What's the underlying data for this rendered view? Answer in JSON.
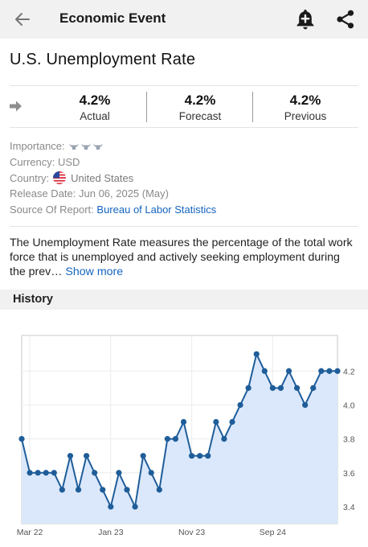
{
  "header": {
    "title": "Economic Event"
  },
  "event": {
    "title": "U.S. Unemployment Rate"
  },
  "stats": {
    "actual_value": "4.2%",
    "actual_label": "Actual",
    "forecast_value": "4.2%",
    "forecast_label": "Forecast",
    "previous_value": "4.2%",
    "previous_label": "Previous"
  },
  "info": {
    "importance_label": "Importance:",
    "importance_level": 3,
    "currency": "Currency: USD",
    "country_label": "Country:",
    "country_value": "United States",
    "release_date": "Release Date: Jun 06, 2025 (May)",
    "source_label": "Source Of Report:",
    "source_value": "Bureau of Labor Statistics"
  },
  "description": {
    "text": "The Unemployment Rate measures the percentage of the total work force that is unemployed and actively seeking employment during the prev…",
    "more_label": "Show more"
  },
  "history": {
    "heading": "History"
  },
  "colors": {
    "accent": "#1565c0",
    "line": "#1f5d99",
    "fill": "#dbe8fb"
  },
  "chart_data": {
    "type": "area",
    "x_tick_labels": [
      "Mar 22",
      "Jan 23",
      "Nov 23",
      "Sep 24"
    ],
    "x_tick_index": [
      1,
      11,
      21,
      31
    ],
    "y_ticks": [
      3.4,
      3.6,
      3.8,
      4.0,
      4.2
    ],
    "y_tick_labels": [
      "3.4",
      "3.6",
      "3.8",
      "4.0",
      "4.2"
    ],
    "ylim": [
      3.3,
      4.41
    ],
    "grid": true,
    "values": [
      3.8,
      3.6,
      3.6,
      3.6,
      3.6,
      3.5,
      3.7,
      3.5,
      3.7,
      3.6,
      3.5,
      3.4,
      3.6,
      3.5,
      3.4,
      3.7,
      3.6,
      3.5,
      3.8,
      3.8,
      3.9,
      3.7,
      3.7,
      3.7,
      3.9,
      3.8,
      3.9,
      4.0,
      4.1,
      4.3,
      4.2,
      4.1,
      4.1,
      4.2,
      4.1,
      4.0,
      4.1,
      4.2,
      4.2,
      4.2
    ]
  }
}
